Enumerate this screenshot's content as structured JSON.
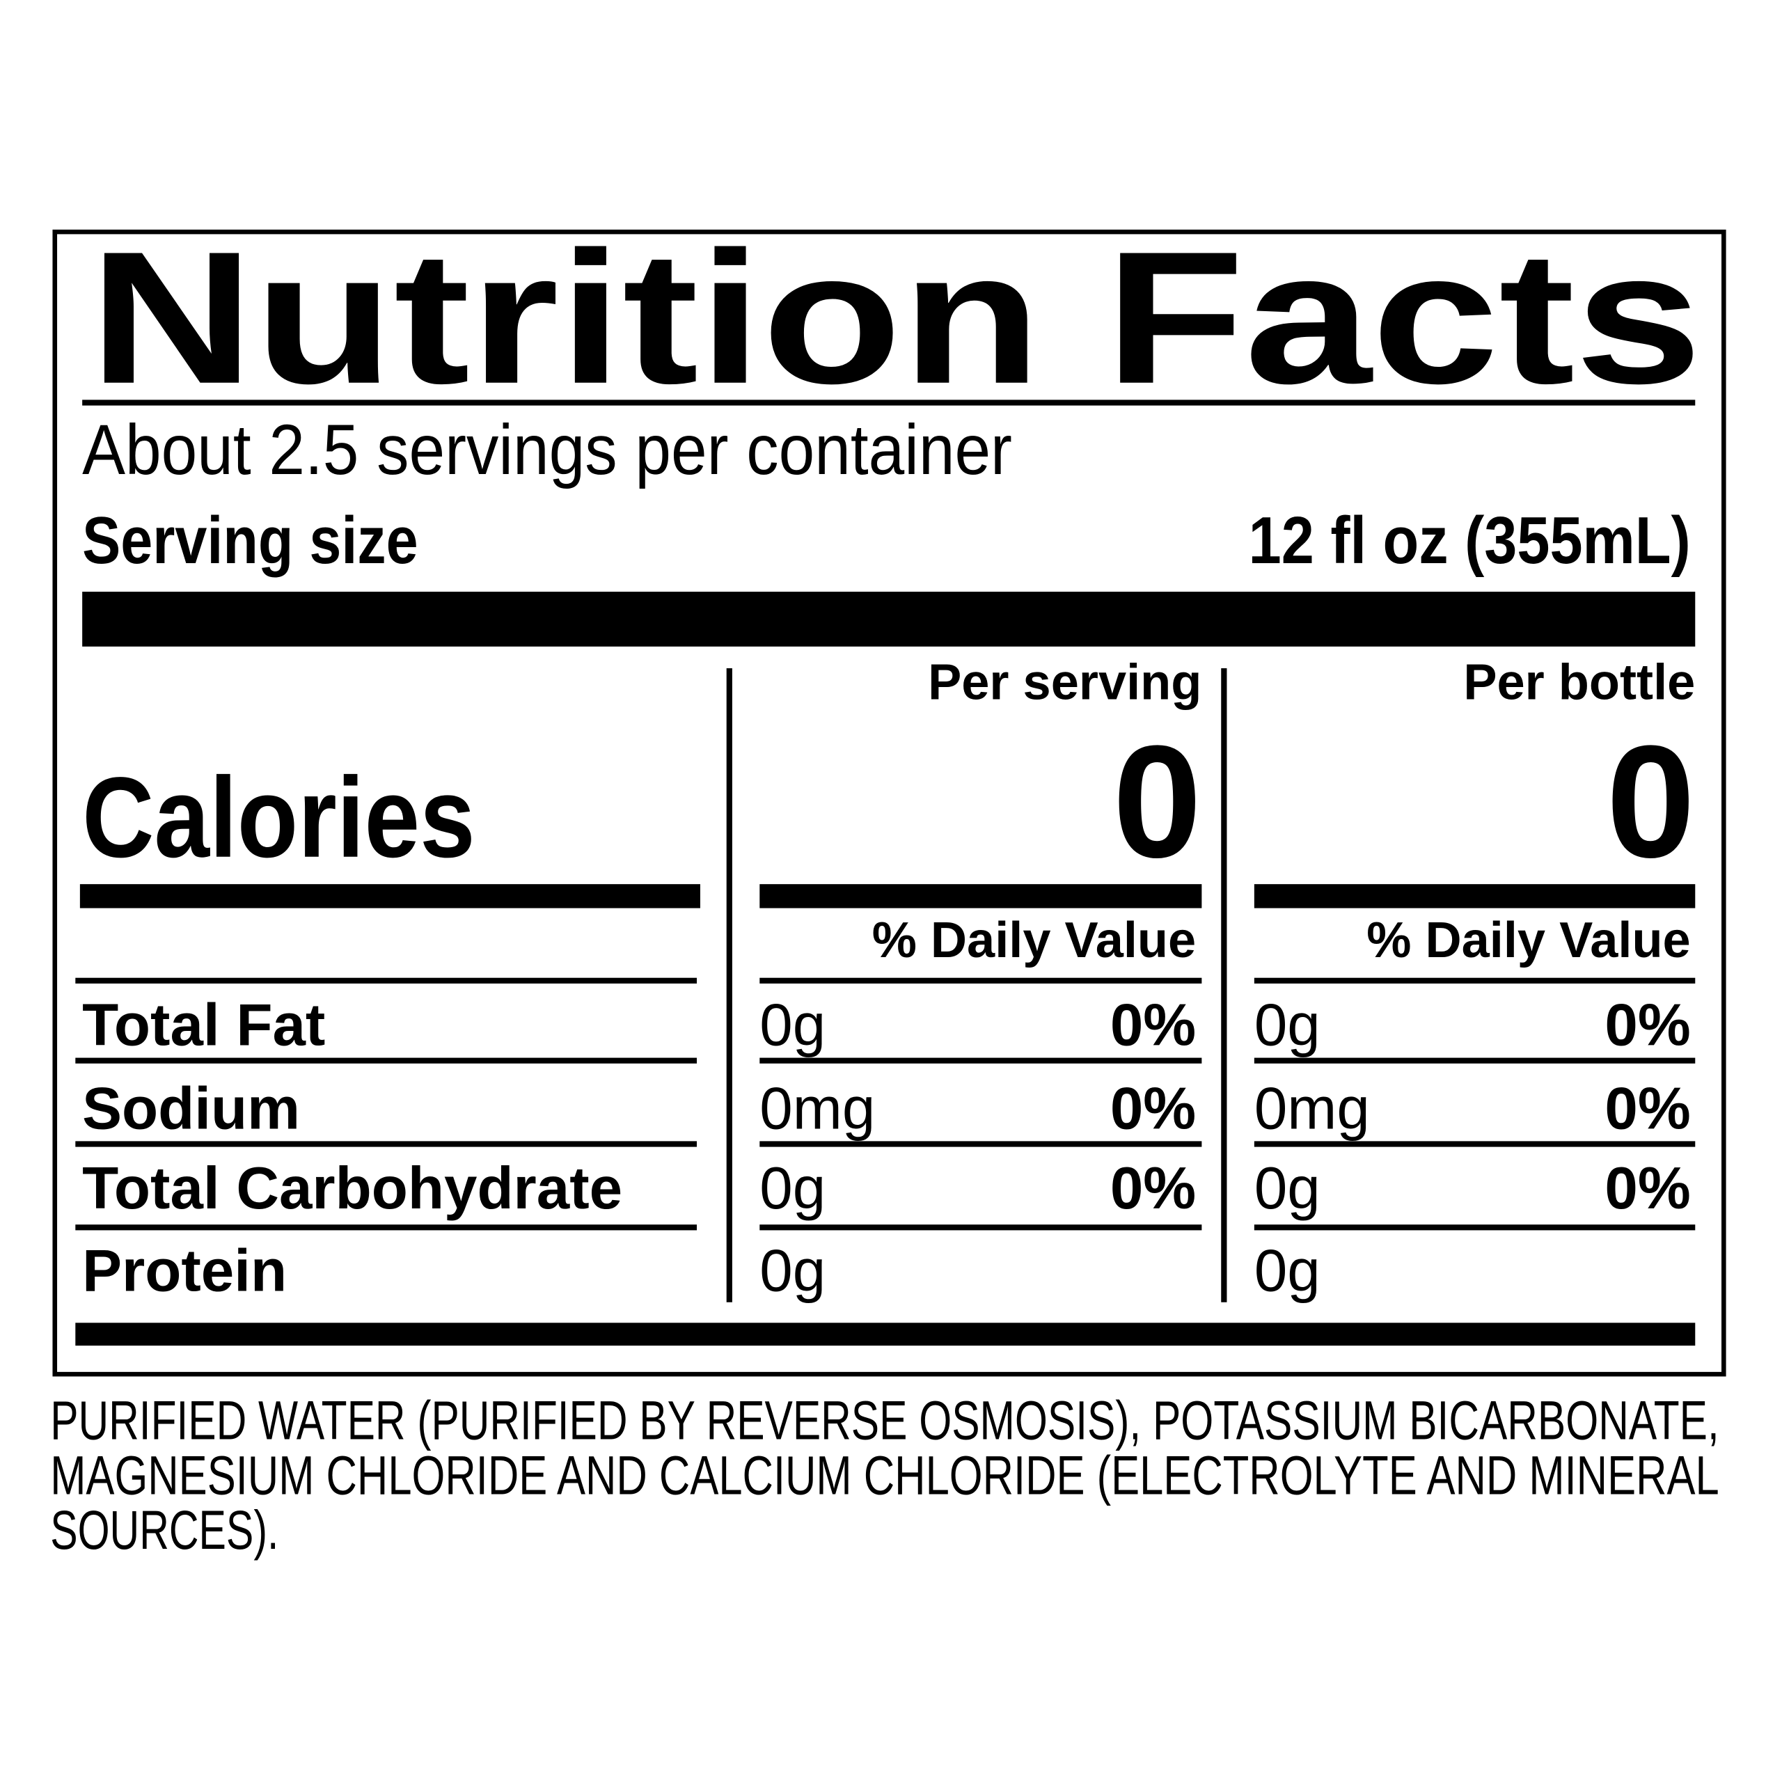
{
  "header": {
    "title": "Nutrition Facts",
    "servings": "About 2.5 servings per container",
    "serving_size_label": "Serving size",
    "serving_size": "12 fl oz (355mL)"
  },
  "columns": [
    {
      "heading": "Per serving",
      "calories": "0",
      "daily_value_heading": "% Daily Value"
    },
    {
      "heading": "Per bottle",
      "calories": "0",
      "daily_value_heading": "% Daily Value"
    }
  ],
  "calories_label": "Calories",
  "nutrients": [
    {
      "name": "Total Fat",
      "per_serving": {
        "amount": "0g",
        "dv": "0%"
      },
      "per_bottle": {
        "amount": "0g",
        "dv": "0%"
      }
    },
    {
      "name": "Sodium",
      "per_serving": {
        "amount": "0mg",
        "dv": "0%"
      },
      "per_bottle": {
        "amount": "0mg",
        "dv": "0%"
      }
    },
    {
      "name": "Total Carbohydrate",
      "per_serving": {
        "amount": "0g",
        "dv": "0%"
      },
      "per_bottle": {
        "amount": "0g",
        "dv": "0%"
      }
    },
    {
      "name": "Protein",
      "per_serving": {
        "amount": "0g"
      },
      "per_bottle": {
        "amount": "0g"
      }
    }
  ],
  "ingredients": [
    "PURIFIED WATER (PURIFIED BY REVERSE OSMOSIS), POTASSIUM BICARBONATE,",
    "MAGNESIUM CHLORIDE AND CALCIUM CHLORIDE (ELECTROLYTE AND MINERAL",
    "SOURCES)."
  ]
}
